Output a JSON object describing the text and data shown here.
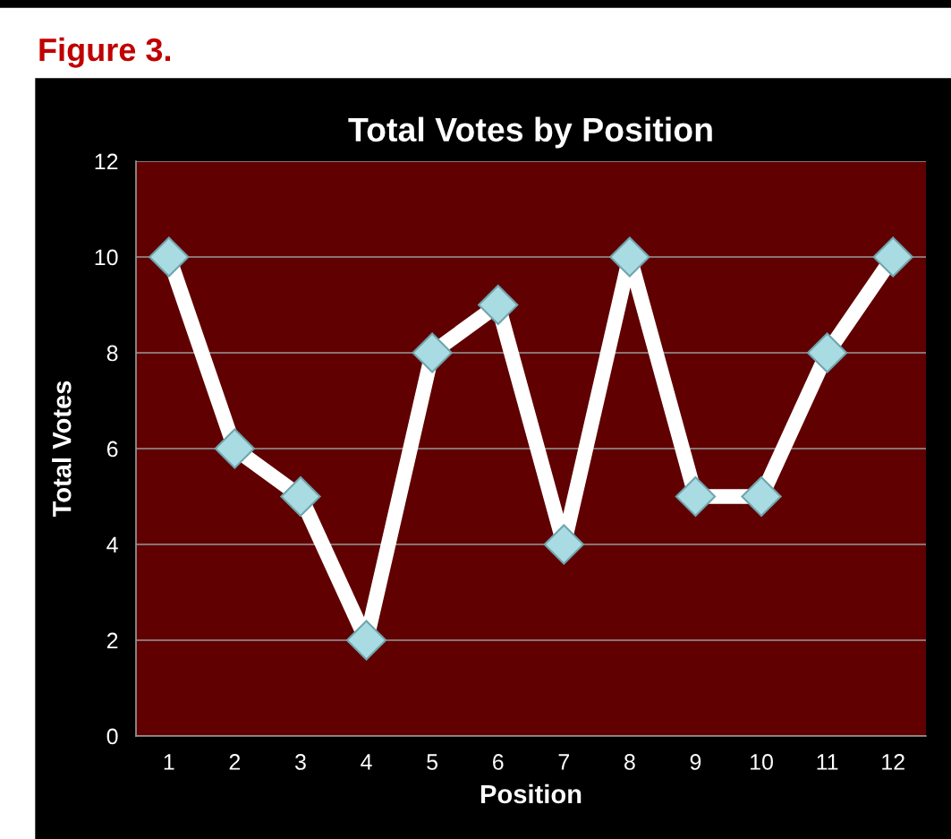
{
  "chart_data": {
    "type": "line",
    "title": "Total Votes by Position",
    "xlabel": "Position",
    "ylabel": "Total Votes",
    "categories": [
      "1",
      "2",
      "3",
      "4",
      "5",
      "6",
      "7",
      "8",
      "9",
      "10",
      "11",
      "12"
    ],
    "series": [
      {
        "color": "#ffffff",
        "values": [
          10,
          6,
          5,
          2,
          8,
          9,
          4,
          10,
          5,
          5,
          8,
          10
        ]
      }
    ],
    "ylim": [
      0,
      12
    ],
    "yticks": [
      0,
      2,
      4,
      6,
      8,
      10,
      12
    ],
    "grid": "y",
    "marker": "diamond",
    "line_style": "solid",
    "annotations": [
      "Figure 3."
    ]
  }
}
